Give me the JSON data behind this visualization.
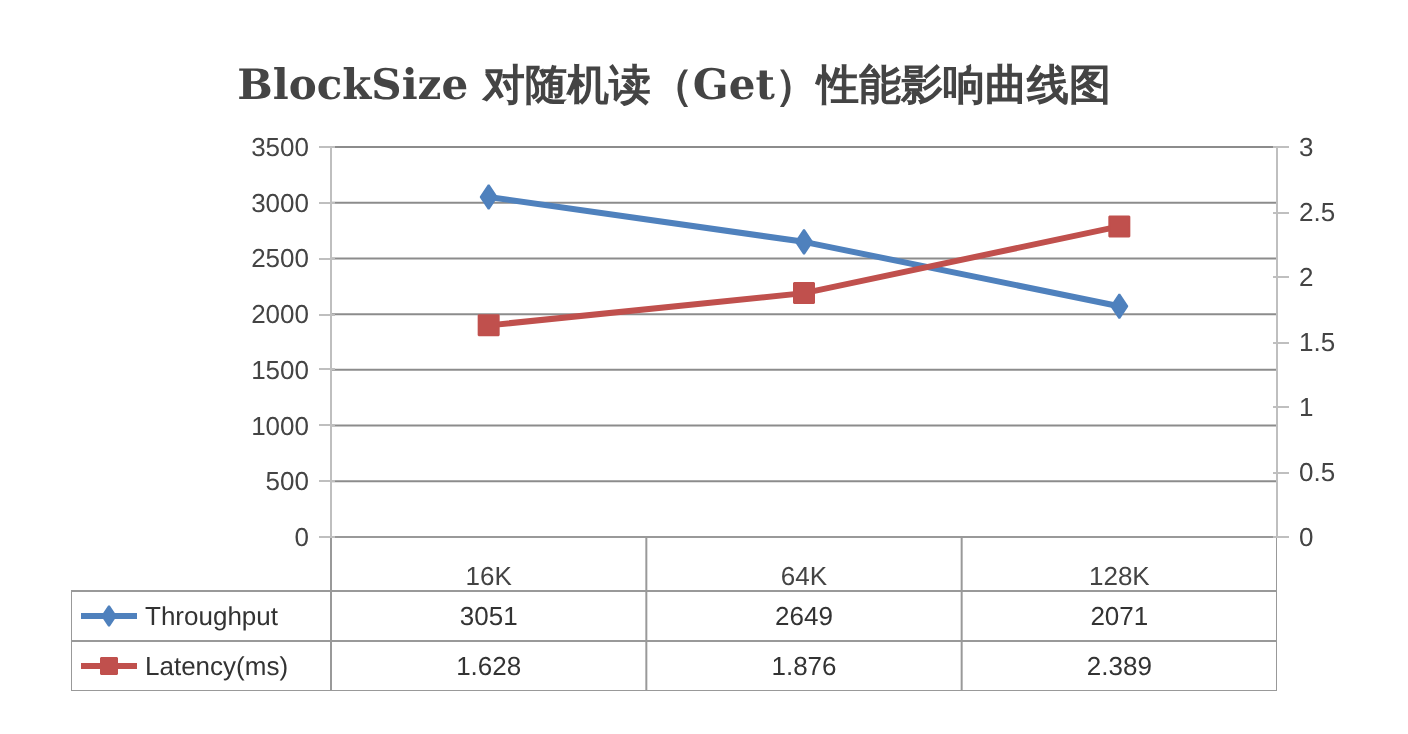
{
  "chart_data": {
    "type": "line",
    "title": "BlockSize 对随机读（Get）性能影响曲线图",
    "categories": [
      "16K",
      "64K",
      "128K"
    ],
    "series": [
      {
        "name": "Throughput",
        "color": "#4f81bd",
        "marker": "diamond",
        "values": [
          3051,
          2649,
          2071
        ]
      },
      {
        "name": "Latency(ms)",
        "color": "#c0504d",
        "marker": "square",
        "axis": "y2",
        "values": [
          1.628,
          1.876,
          2.389
        ]
      }
    ],
    "ylim": [
      0,
      3500
    ],
    "yticks": [
      0,
      500,
      1000,
      1500,
      2000,
      2500,
      3000,
      3500
    ],
    "y2lim": [
      0,
      3
    ],
    "y2ticks": [
      0,
      0.5,
      1,
      1.5,
      2,
      2.5,
      3
    ],
    "grid": "y",
    "legend": "bottom",
    "data_labels": true
  }
}
